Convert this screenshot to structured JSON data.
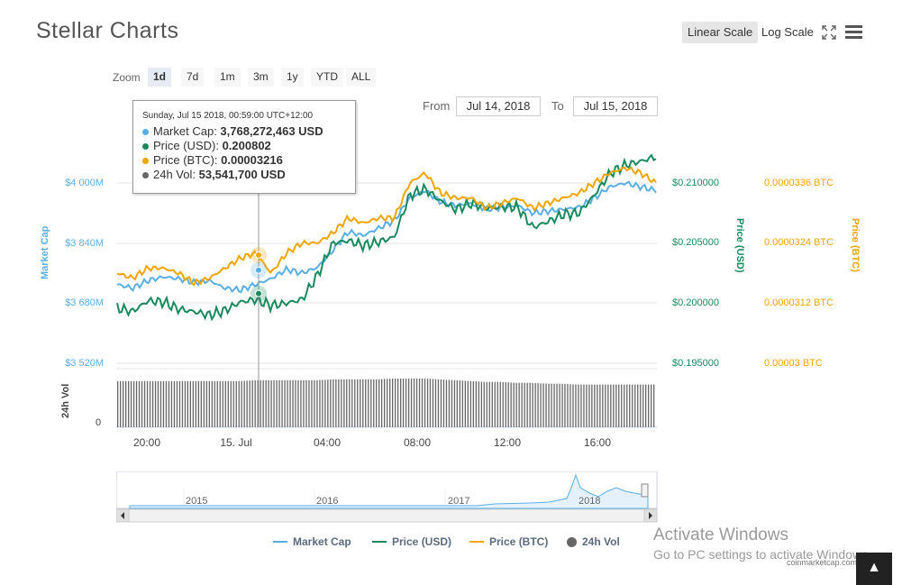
{
  "title": "Stellar Charts",
  "toolbar": {
    "linear_scale": "Linear Scale",
    "log_scale": "Log Scale",
    "fullscreen_icon": "expand-icon",
    "menu_icon": "menu-icon"
  },
  "zoom": {
    "label": "Zoom",
    "options": [
      "1d",
      "7d",
      "1m",
      "3m",
      "1y",
      "YTD",
      "ALL"
    ],
    "active": "1d"
  },
  "range": {
    "from_label": "From",
    "from": "Jul 14, 2018",
    "to_label": "To",
    "to": "Jul 15, 2018"
  },
  "tooltip": {
    "header": "Sunday, Jul 15 2018, 00:59:00 UTC+12:00",
    "rows": [
      {
        "label": "Market Cap: ",
        "value": "3,768,272,463 USD",
        "color": "#5aaee6"
      },
      {
        "label": "Price (USD): ",
        "value": "0.200802",
        "color": "#1a8a5e"
      },
      {
        "label": "Price (BTC): ",
        "value": "0.00003216",
        "color": "#f0a500"
      },
      {
        "label": "24h Vol: ",
        "value": "53,541,700 USD",
        "color": "#666666"
      }
    ]
  },
  "colors": {
    "market_cap": "#5aaee6",
    "price_usd": "#1a8a5e",
    "price_btc": "#f0a500",
    "volume": "#777777"
  },
  "chart_data": {
    "type": "line",
    "x_ticks": [
      "20:00",
      "15. Jul",
      "04:00",
      "08:00",
      "12:00",
      "16:00"
    ],
    "axes": {
      "market_cap": {
        "label": "Market Cap",
        "ticks": [
          "$4 000M",
          "$3 840M",
          "$3 680M",
          "$3 520M"
        ],
        "range": [
          3520,
          4000
        ]
      },
      "price_usd": {
        "label": "Price (USD)",
        "ticks": [
          "$0.210000",
          "$0.205000",
          "$0.200000",
          "$0.195000"
        ],
        "range": [
          0.195,
          0.21
        ]
      },
      "price_btc": {
        "label": "Price (BTC)",
        "ticks": [
          "0.0000336 BTC",
          "0.0000324 BTC",
          "0.0000312 BTC",
          "0.00003 BTC"
        ],
        "range": [
          3e-05,
          3.36e-05
        ]
      },
      "volume": {
        "label": "24h Vol",
        "ticks": [
          "0"
        ]
      }
    },
    "series": [
      {
        "name": "Market Cap",
        "axis": "market_cap",
        "values": [
          3730,
          3720,
          3740,
          3750,
          3745,
          3735,
          3740,
          3720,
          3715,
          3730,
          3745,
          3770,
          3760,
          3775,
          3820,
          3870,
          3860,
          3880,
          3900,
          3960,
          3980,
          3950,
          3940,
          3945,
          3930,
          3935,
          3940,
          3920,
          3925,
          3930,
          3935,
          3960,
          3990,
          4000,
          3990,
          3980
        ]
      },
      {
        "name": "Price (USD)",
        "axis": "price_usd",
        "values": [
          0.1996,
          0.1993,
          0.2002,
          0.2001,
          0.1995,
          0.1993,
          0.199,
          0.1994,
          0.2001,
          0.2003,
          0.1998,
          0.2,
          0.2003,
          0.2023,
          0.205,
          0.2052,
          0.2048,
          0.2051,
          0.2055,
          0.209,
          0.2095,
          0.2085,
          0.2078,
          0.2083,
          0.2079,
          0.208,
          0.208,
          0.2063,
          0.2068,
          0.2074,
          0.2075,
          0.209,
          0.2108,
          0.2115,
          0.2118,
          0.2122
        ]
      },
      {
        "name": "Price (BTC)",
        "axis": "price_btc",
        "values": [
          3.18e-05,
          3.17e-05,
          3.19e-05,
          3.19e-05,
          3.18e-05,
          3.16e-05,
          3.17e-05,
          3.19e-05,
          3.21e-05,
          3.22e-05,
          3.18e-05,
          3.22e-05,
          3.24e-05,
          3.24e-05,
          3.26e-05,
          3.29e-05,
          3.28e-05,
          3.29e-05,
          3.29e-05,
          3.36e-05,
          3.38e-05,
          3.34e-05,
          3.33e-05,
          3.33e-05,
          3.31e-05,
          3.32e-05,
          3.33e-05,
          3.31e-05,
          3.32e-05,
          3.33e-05,
          3.34e-05,
          3.36e-05,
          3.38e-05,
          3.39e-05,
          3.38e-05,
          3.36e-05
        ]
      },
      {
        "name": "24h Vol",
        "axis": "volume",
        "values": [
          53,
          53,
          53,
          53,
          53,
          53,
          53,
          53,
          53,
          54,
          54,
          54,
          54,
          54,
          55,
          55,
          55,
          55,
          56,
          56,
          56,
          55,
          54,
          53,
          52,
          52,
          51,
          51,
          50,
          50,
          49,
          49,
          49,
          49,
          49,
          49
        ]
      }
    ],
    "navigator": {
      "years": [
        "2015",
        "2016",
        "2017",
        "2018"
      ]
    },
    "legend": [
      "Market Cap",
      "Price (USD)",
      "Price (BTC)",
      "24h Vol"
    ],
    "legend_placement": "bottom"
  },
  "watermark": {
    "line1": "Activate Windows",
    "line2": "Go to PC settings to activate Windows."
  },
  "credit": "coinmarketcap.com"
}
